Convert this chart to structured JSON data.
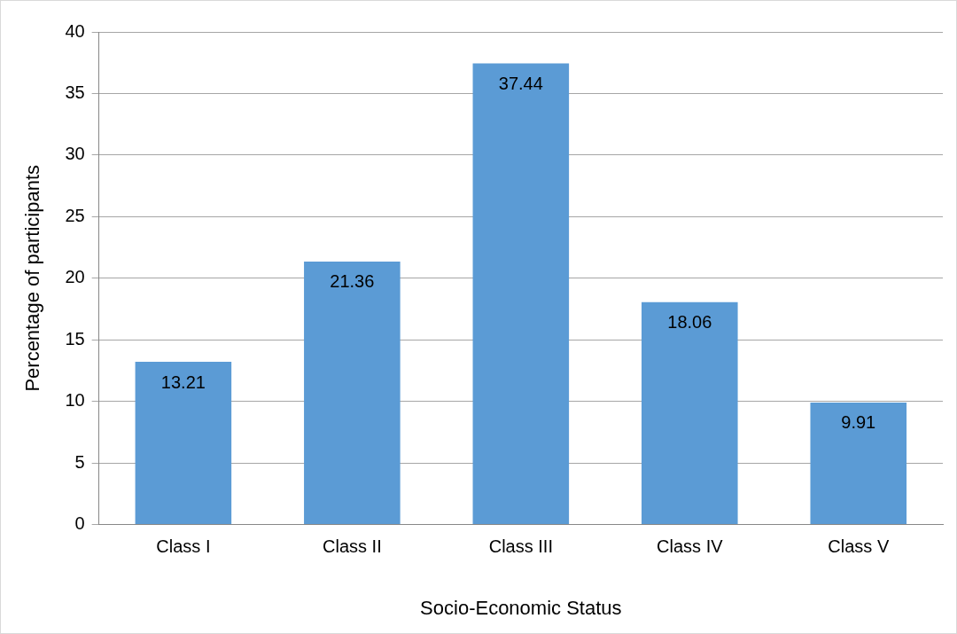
{
  "chart_data": {
    "type": "bar",
    "xlabel": "Socio-Economic Status",
    "ylabel": "Percentage of participants",
    "categories": [
      "Class I",
      "Class II",
      "Class III",
      "Class IV",
      "Class V"
    ],
    "values": [
      13.21,
      21.36,
      37.44,
      18.06,
      9.91
    ],
    "color": "#5b9bd5",
    "ylim": [
      0,
      40
    ],
    "yticks": [
      0,
      5,
      10,
      15,
      20,
      25,
      30,
      35,
      40
    ],
    "grid": "y",
    "data_labels": true
  }
}
